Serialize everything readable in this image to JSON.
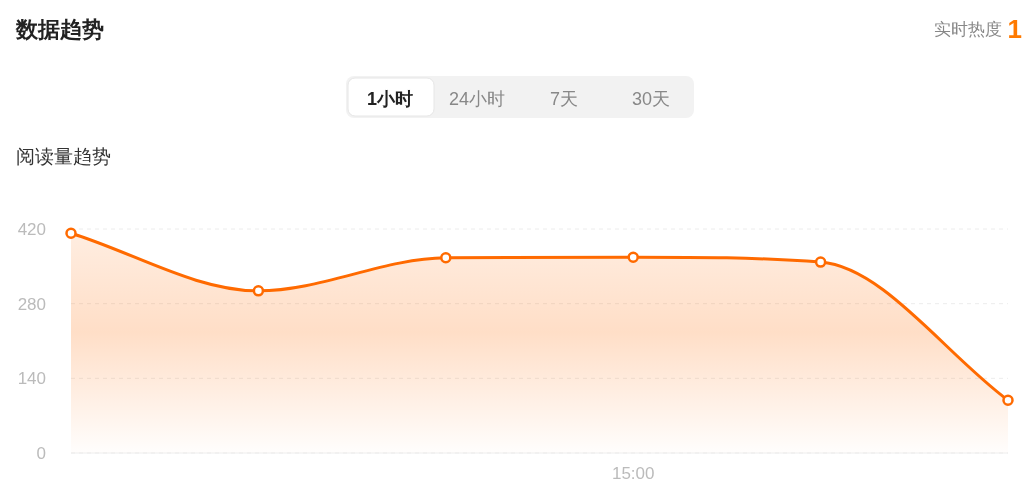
{
  "chart_data": {
    "type": "area",
    "title": "数据趋势",
    "subtitle": "阅读量趋势",
    "annotations": [
      "实时热度",
      "1",
      "1小时",
      "24小时",
      "7天",
      "30天"
    ],
    "categories": [
      null,
      null,
      null,
      "15:00",
      null,
      null
    ],
    "series": [
      {
        "color": "#ff6a00",
        "values": [
          412,
          304,
          366,
          367,
          358,
          99
        ]
      }
    ],
    "ylim": [
      0,
      420
    ],
    "yticks": [
      0,
      140,
      280,
      420
    ],
    "grid": "y",
    "marker": "circle",
    "line_style": "solid"
  }
}
